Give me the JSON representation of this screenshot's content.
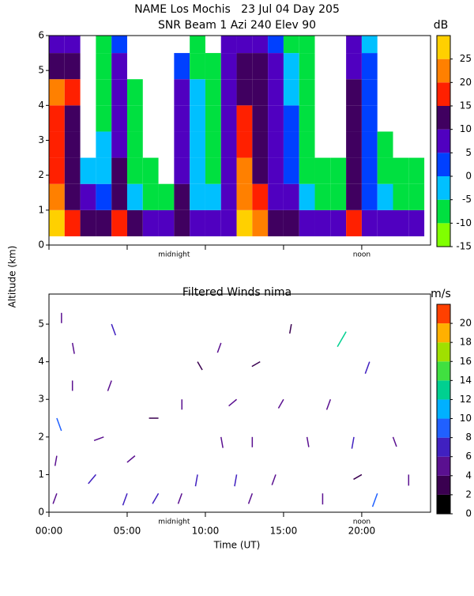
{
  "title": "NAME Los Mochis   23 Jul 04 Day 205",
  "chart_data": [
    {
      "type": "heatmap",
      "title": "SNR Beam 1 Azi 240 Elev 90",
      "x_bins": [
        0,
        1,
        2,
        3,
        4,
        5,
        6,
        7,
        8,
        9,
        10,
        11,
        12,
        13,
        14,
        15,
        16,
        17,
        18,
        19,
        20,
        21,
        22,
        23,
        24
      ],
      "y_bins": [
        0.25,
        1,
        1.75,
        2.5,
        3.25,
        4,
        4.75,
        5.5,
        6
      ],
      "values": [
        [
          25,
          15,
          10,
          10,
          15,
          10,
          8,
          5,
          12,
          8,
          5,
          8,
          25,
          20,
          12,
          10,
          8,
          5,
          5,
          15,
          8,
          5,
          5,
          5
        ],
        [
          20,
          12,
          5,
          0,
          10,
          -5,
          -10,
          -10,
          10,
          -5,
          -5,
          5,
          20,
          15,
          8,
          5,
          -5,
          -10,
          -10,
          12,
          0,
          -5,
          -10,
          -10
        ],
        [
          18,
          12,
          -5,
          -5,
          10,
          -10,
          -10,
          null,
          8,
          -5,
          -10,
          5,
          20,
          12,
          5,
          0,
          -10,
          -10,
          -10,
          12,
          0,
          -10,
          -10,
          -10
        ],
        [
          15,
          10,
          null,
          -5,
          8,
          -10,
          null,
          null,
          8,
          -5,
          -10,
          5,
          18,
          12,
          5,
          0,
          -10,
          null,
          null,
          10,
          0,
          -10,
          null,
          null
        ],
        [
          15,
          10,
          null,
          -10,
          8,
          -10,
          null,
          null,
          8,
          -5,
          -10,
          5,
          15,
          10,
          5,
          0,
          -10,
          null,
          null,
          10,
          0,
          null,
          null,
          null
        ],
        [
          20,
          15,
          null,
          -10,
          5,
          -10,
          null,
          null,
          5,
          -5,
          -10,
          5,
          12,
          10,
          5,
          -5,
          -10,
          null,
          null,
          10,
          0,
          null,
          null,
          null
        ],
        [
          12,
          10,
          null,
          -10,
          5,
          null,
          null,
          null,
          0,
          -10,
          -10,
          5,
          10,
          10,
          5,
          -5,
          -10,
          null,
          null,
          8,
          0,
          null,
          null,
          null
        ],
        [
          5,
          5,
          null,
          -10,
          0,
          null,
          null,
          null,
          null,
          -10,
          null,
          5,
          5,
          5,
          0,
          -10,
          -10,
          null,
          null,
          5,
          -5,
          null,
          null,
          null
        ]
      ],
      "xlim": [
        0,
        24.4
      ],
      "ylim": [
        0,
        6
      ],
      "yticks": [
        0,
        1,
        2,
        3,
        4,
        5,
        6
      ],
      "colorbar": {
        "label": "dB",
        "lim": [
          -15,
          30
        ],
        "bounds": [
          -15,
          -10,
          -5,
          0,
          5,
          10,
          15,
          20,
          25,
          30
        ],
        "colors": [
          "#80ff00",
          "#00e040",
          "#00c0ff",
          "#0040ff",
          "#5000c0",
          "#400060",
          "#ff2000",
          "#ff8000",
          "#ffd000"
        ],
        "ticks": [
          -15,
          -10,
          -5,
          0,
          5,
          10,
          15,
          20,
          25
        ]
      },
      "annotations": [
        {
          "text": "midnight",
          "x": 8
        },
        {
          "text": "noon",
          "x": 20
        }
      ]
    },
    {
      "type": "wind",
      "title": "Filtered Winds nima",
      "x_label": "Time (UT)",
      "y_label": "Altitude (km)",
      "time": [
        0.5,
        0.5,
        0.5,
        1.5,
        1.5,
        0.8,
        3,
        3.5,
        4,
        4,
        5,
        5.5,
        7,
        7,
        8.5,
        8.5,
        9.5,
        9.5,
        11,
        11,
        12,
        12,
        13,
        13,
        13.5,
        14.5,
        15,
        15.5,
        16.5,
        17.5,
        18,
        19,
        19.5,
        20,
        20.5,
        21,
        22,
        23
      ],
      "altitude": [
        0.5,
        1.5,
        2.5,
        3.5,
        4.5,
        5.3,
        1,
        2,
        3.5,
        5,
        0.5,
        1.5,
        0.5,
        2.5,
        0.5,
        3,
        1,
        4,
        2,
        4.5,
        1,
        3,
        0.5,
        2,
        4,
        1,
        3,
        5,
        2,
        0.5,
        3,
        4.8,
        2,
        1,
        4,
        0.5,
        2,
        1
      ],
      "speed": [
        5,
        4,
        8,
        4,
        5,
        4,
        6,
        4,
        5,
        6,
        7,
        4,
        6,
        3,
        5,
        4,
        6,
        3,
        5,
        4,
        6,
        4,
        5,
        4,
        3,
        5,
        4,
        3,
        4,
        5,
        5,
        13,
        6,
        3,
        7,
        9,
        4,
        5
      ],
      "direction": [
        200,
        190,
        160,
        180,
        170,
        180,
        220,
        250,
        200,
        160,
        200,
        230,
        210,
        270,
        200,
        180,
        190,
        150,
        170,
        200,
        190,
        230,
        200,
        180,
        240,
        200,
        210,
        190,
        170,
        180,
        200,
        210,
        190,
        240,
        200,
        200,
        160,
        180
      ],
      "xlim": [
        0,
        24.4
      ],
      "ylim": [
        0,
        5.8
      ],
      "yticks": [
        0,
        1,
        2,
        3,
        4,
        5
      ],
      "xticks": [
        {
          "value": 0,
          "label": "00:00"
        },
        {
          "value": 5,
          "label": "05:00"
        },
        {
          "value": 10,
          "label": "10:00"
        },
        {
          "value": 15,
          "label": "15:00"
        },
        {
          "value": 20,
          "label": "20:00"
        }
      ],
      "colorbar": {
        "label": "m/s",
        "lim": [
          0,
          22
        ],
        "bounds": [
          0,
          2,
          4,
          6,
          8,
          10,
          12,
          14,
          16,
          18,
          20,
          22
        ],
        "colors": [
          "#000000",
          "#3a0050",
          "#5a1090",
          "#4020c0",
          "#2060ff",
          "#00b0ff",
          "#00d090",
          "#40e040",
          "#a0e000",
          "#ffb000",
          "#ff4000"
        ],
        "ticks": [
          0,
          2,
          4,
          6,
          8,
          10,
          12,
          14,
          16,
          18,
          20
        ]
      },
      "annotations": [
        {
          "text": "midnight",
          "x": 8
        },
        {
          "text": "noon",
          "x": 20
        }
      ]
    }
  ]
}
